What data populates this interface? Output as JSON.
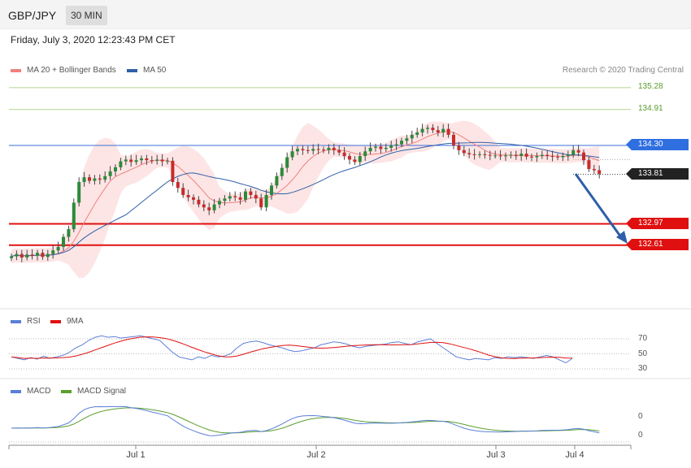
{
  "header": {
    "symbol": "GBP/JPY",
    "timeframe": "30 MIN",
    "datetime": "Friday, July 3, 2020 12:23:43 PM CET"
  },
  "legend": {
    "ma20_bb": {
      "label": "MA 20 + Bollinger Bands",
      "color": "#f08080"
    },
    "ma50": {
      "label": "MA 50",
      "color": "#2f5fa8"
    },
    "credit": "Research © 2020 Trading Central",
    "rsi": {
      "label": "RSI",
      "color": "#5b7fd6"
    },
    "rsi_ma": {
      "label": "9MA",
      "color": "#e01010"
    },
    "macd": {
      "label": "MACD",
      "color": "#5b7fd6"
    },
    "macd_signal": {
      "label": "MACD Signal",
      "color": "#5aa02c"
    }
  },
  "levels": {
    "r2": "135.28",
    "r1": "134.91",
    "pivot": "134.30",
    "last": "133.81",
    "s1": "132.97",
    "s2": "132.61"
  },
  "rsi_ticks": [
    "70",
    "50",
    "30"
  ],
  "macd_ticks": [
    "0",
    "0"
  ],
  "x_labels": [
    "Jul 1",
    "Jul 2",
    "Jul 3",
    "Jul 4"
  ],
  "chart_data": {
    "type": "candlestick",
    "symbol": "GBP/JPY",
    "timeframe": "30 MIN",
    "x_ticks": [
      "Jul 1",
      "Jul 2",
      "Jul 3",
      "Jul 4"
    ],
    "levels": [
      {
        "value": 135.28,
        "color": "#8fbf5a"
      },
      {
        "value": 134.91,
        "color": "#8fbf5a"
      },
      {
        "value": 134.3,
        "color": "#2f6fe0"
      },
      {
        "value": 133.81,
        "color": "#222222"
      },
      {
        "value": 132.97,
        "color": "#e01010"
      },
      {
        "value": 132.61,
        "color": "#e01010"
      }
    ],
    "close_series_approx": [
      132.42,
      132.46,
      132.4,
      132.45,
      132.43,
      132.48,
      132.41,
      132.46,
      132.52,
      132.58,
      132.75,
      132.88,
      133.33,
      133.68,
      133.76,
      133.7,
      133.74,
      133.72,
      133.78,
      133.86,
      133.93,
      134.03,
      134.06,
      134.02,
      134.05,
      134.08,
      134.05,
      134.04,
      134.06,
      134.03,
      134.04,
      133.68,
      133.58,
      133.46,
      133.42,
      133.38,
      133.3,
      133.25,
      133.2,
      133.3,
      133.36,
      133.4,
      133.44,
      133.42,
      133.38,
      133.52,
      133.46,
      133.4,
      133.25,
      133.46,
      133.62,
      133.78,
      133.92,
      134.1,
      134.2,
      134.24,
      134.22,
      134.21,
      134.24,
      134.23,
      134.22,
      134.26,
      134.22,
      134.18,
      134.12,
      134.06,
      134.02,
      134.12,
      134.2,
      134.26,
      134.28,
      134.24,
      134.26,
      134.3,
      134.32,
      134.38,
      134.42,
      134.48,
      134.52,
      134.58,
      134.6,
      134.56,
      134.52,
      134.58,
      134.48,
      134.3,
      134.22,
      134.17,
      134.15,
      134.14,
      134.15,
      134.14,
      134.13,
      134.13,
      134.12,
      134.13,
      134.14,
      134.12,
      134.16,
      134.11,
      134.1,
      134.12,
      134.14,
      134.12,
      134.11,
      134.1,
      134.12,
      134.14,
      134.22,
      134.18,
      134.05,
      133.9,
      133.88,
      133.82
    ],
    "rsi_approx": [
      46,
      44,
      42,
      45,
      43,
      47,
      44,
      46,
      48,
      52,
      58,
      62,
      68,
      72,
      74,
      72,
      73,
      71,
      72,
      73,
      74,
      72,
      70,
      68,
      60,
      52,
      46,
      44,
      42,
      46,
      44,
      48,
      46,
      47,
      50,
      58,
      64,
      66,
      67,
      65,
      62,
      60,
      58,
      55,
      53,
      54,
      56,
      58,
      62,
      64,
      66,
      65,
      63,
      60,
      58,
      60,
      61,
      62,
      63,
      65,
      66,
      64,
      62,
      66,
      68,
      70,
      64,
      58,
      52,
      46,
      44,
      42,
      44,
      43,
      42,
      45,
      44,
      46,
      45,
      46,
      45,
      44,
      46,
      48,
      46,
      42,
      38,
      44
    ],
    "rsi_ticks": [
      70,
      50,
      30
    ],
    "macd_ticks": [
      0,
      0
    ],
    "series_names": [
      "RSI",
      "9MA",
      "MACD",
      "MACD Signal",
      "MA 20 + Bollinger Bands",
      "MA 50"
    ]
  }
}
